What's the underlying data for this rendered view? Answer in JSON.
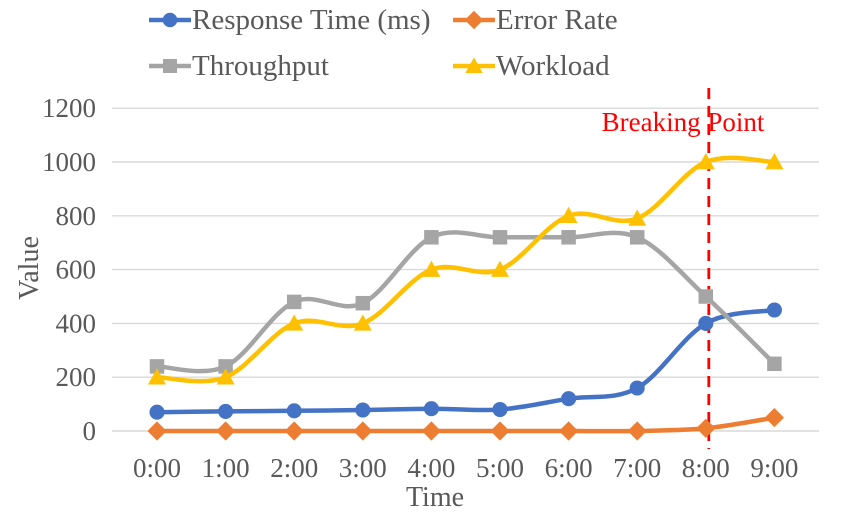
{
  "chart_data": {
    "type": "line",
    "title": "",
    "xlabel": "Time",
    "ylabel": "Value",
    "categories": [
      "0:00",
      "1:00",
      "2:00",
      "3:00",
      "4:00",
      "5:00",
      "6:00",
      "7:00",
      "8:00",
      "9:00"
    ],
    "series": [
      {
        "name": "Response Time (ms)",
        "color": "#4472C4",
        "marker": "circle",
        "values": [
          70,
          73,
          75,
          78,
          83,
          80,
          120,
          160,
          400,
          450
        ]
      },
      {
        "name": "Error Rate",
        "color": "#ED7D31",
        "marker": "diamond",
        "values": [
          0,
          0,
          0,
          0,
          0,
          0,
          0,
          0,
          10,
          50
        ]
      },
      {
        "name": "Throughput",
        "color": "#A5A5A5",
        "marker": "square",
        "values": [
          240,
          240,
          480,
          475,
          720,
          720,
          720,
          720,
          500,
          250
        ]
      },
      {
        "name": "Workload",
        "color": "#FFC000",
        "marker": "triangle",
        "values": [
          200,
          200,
          400,
          400,
          600,
          600,
          800,
          790,
          1000,
          1000
        ]
      }
    ],
    "ylim": [
      0,
      1200
    ],
    "yticks": [
      0,
      200,
      400,
      600,
      800,
      1000,
      1200
    ],
    "grid": "horizontal-only",
    "gridline_color": "#D9D9D9",
    "axis_text_color": "#595959",
    "legend_position": "top",
    "line_style": "smoothed",
    "annotation": {
      "label": "Breaking Point",
      "x_category": "8:00",
      "color": "#FF0000",
      "line_style": "dashed-vertical"
    }
  }
}
